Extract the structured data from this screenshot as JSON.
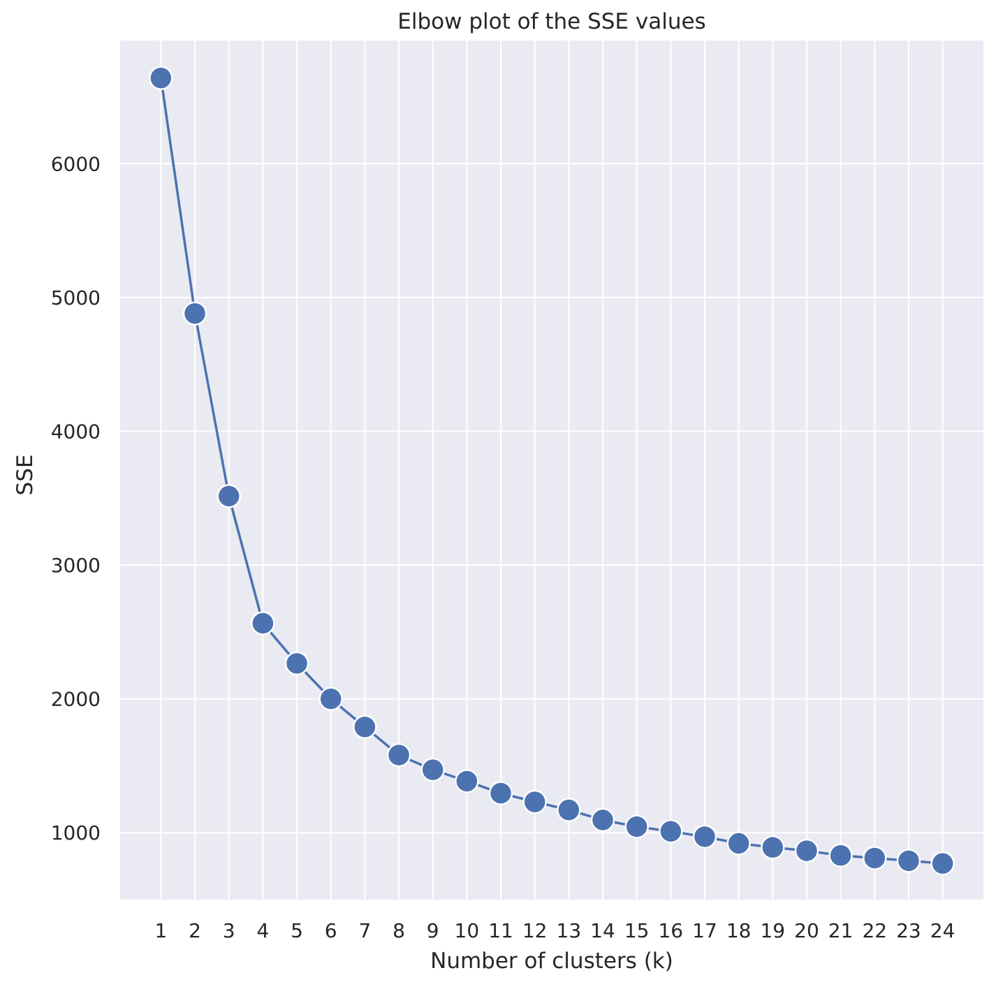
{
  "chart_data": {
    "type": "line",
    "title": "Elbow plot of the SSE values",
    "xlabel": "Number of clusters (k)",
    "ylabel": "SSE",
    "x": [
      1,
      2,
      3,
      4,
      5,
      6,
      7,
      8,
      9,
      10,
      11,
      12,
      13,
      14,
      15,
      16,
      17,
      18,
      19,
      20,
      21,
      22,
      23,
      24
    ],
    "series": [
      {
        "values": [
          6640,
          4880,
          3515,
          2565,
          2265,
          2000,
          1790,
          1580,
          1470,
          1385,
          1295,
          1230,
          1170,
          1095,
          1045,
          1010,
          970,
          920,
          890,
          865,
          830,
          810,
          790,
          770
        ]
      }
    ],
    "xlim": [
      -0.2,
      25.2
    ],
    "ylim": [
      500,
      6920
    ],
    "yticks": [
      1000,
      2000,
      3000,
      4000,
      5000,
      6000
    ],
    "xticks": [
      1,
      2,
      3,
      4,
      5,
      6,
      7,
      8,
      9,
      10,
      11,
      12,
      13,
      14,
      15,
      16,
      17,
      18,
      19,
      20,
      21,
      22,
      23,
      24
    ],
    "grid": true,
    "colors": {
      "line": "#4c72b0",
      "marker": "#4c72b0",
      "background": "#eaeaf2",
      "grid": "#ffffff"
    }
  }
}
